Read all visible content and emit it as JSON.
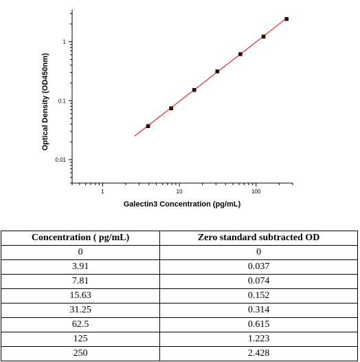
{
  "chart_data": {
    "type": "scatter",
    "xscale": "log",
    "yscale": "log",
    "xlim": [
      0.4,
      300
    ],
    "ylim": [
      0.004,
      3.5
    ],
    "xticks": [
      1,
      10,
      100
    ],
    "xtick_labels": [
      "1",
      "10",
      "100"
    ],
    "yticks": [
      0.01,
      0.1,
      1
    ],
    "ytick_labels": [
      "0.01",
      "0.1",
      "1"
    ],
    "xlabel": "Galectin3 Concentration (pg/mL)",
    "ylabel": "Optical Density (OD450nm)",
    "grid": false,
    "x": [
      3.91,
      7.81,
      15.63,
      31.25,
      62.5,
      125,
      250
    ],
    "y": [
      0.037,
      0.074,
      0.152,
      0.314,
      0.615,
      1.223,
      2.428
    ],
    "fit_line": {
      "x": [
        2.6,
        250
      ],
      "y": [
        0.025,
        2.5
      ]
    },
    "colors": {
      "points": "#3a0000",
      "fit": "#e00000"
    }
  },
  "table": {
    "headers": [
      "Concentration ( pg/mL)",
      "Zero standard subtracted OD"
    ],
    "rows": [
      [
        "0",
        "0"
      ],
      [
        "3.91",
        "0.037"
      ],
      [
        "7.81",
        "0.074"
      ],
      [
        "15.63",
        "0.152"
      ],
      [
        "31.25",
        "0.314"
      ],
      [
        "62.5",
        "0.615"
      ],
      [
        "125",
        "1.223"
      ],
      [
        "250",
        "2.428"
      ]
    ]
  }
}
